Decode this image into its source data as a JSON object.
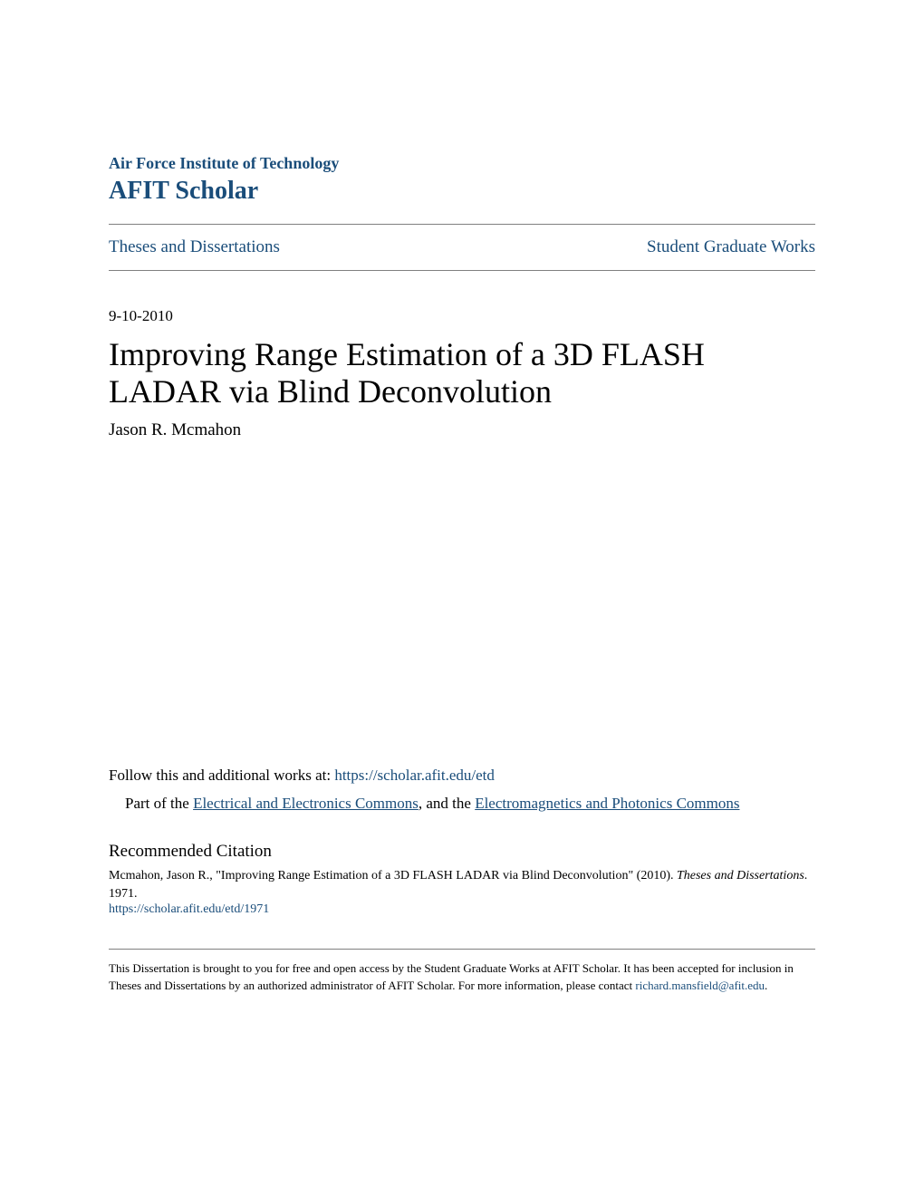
{
  "header": {
    "institution": "Air Force Institute of Technology",
    "scholar": "AFIT Scholar"
  },
  "nav": {
    "left": "Theses and Dissertations",
    "right": "Student Graduate Works"
  },
  "date": "9-10-2010",
  "title": "Improving Range Estimation of a 3D FLASH LADAR via Blind Deconvolution",
  "author": "Jason R. Mcmahon",
  "follow": {
    "prefix": "Follow this and additional works at: ",
    "url": "https://scholar.afit.edu/etd"
  },
  "part": {
    "prefix": "Part of the ",
    "link1": "Electrical and Electronics Commons",
    "mid": ", and the ",
    "link2": "Electromagnetics and Photonics Commons"
  },
  "citation": {
    "heading": "Recommended Citation",
    "text_prefix": "Mcmahon, Jason R., \"Improving Range Estimation of a 3D FLASH LADAR via Blind Deconvolution\" (2010). ",
    "text_italic": "Theses and Dissertations",
    "text_suffix": ". 1971.",
    "url": "https://scholar.afit.edu/etd/1971"
  },
  "footer": {
    "text_prefix": "This Dissertation is brought to you for free and open access by the Student Graduate Works at AFIT Scholar. It has been accepted for inclusion in Theses and Dissertations by an authorized administrator of AFIT Scholar. For more information, please contact ",
    "email": "richard.mansfield@afit.edu",
    "text_suffix": "."
  },
  "colors": {
    "link_color": "#1a4d7a",
    "text_color": "#000000",
    "divider_color": "#808080",
    "background": "#ffffff"
  },
  "typography": {
    "font_family": "Georgia, Times New Roman, serif",
    "institution_size": 18,
    "scholar_size": 28,
    "nav_size": 19,
    "date_size": 17,
    "title_size": 36,
    "author_size": 19,
    "body_size": 17,
    "citation_heading_size": 19,
    "citation_text_size": 14,
    "footer_size": 13
  }
}
